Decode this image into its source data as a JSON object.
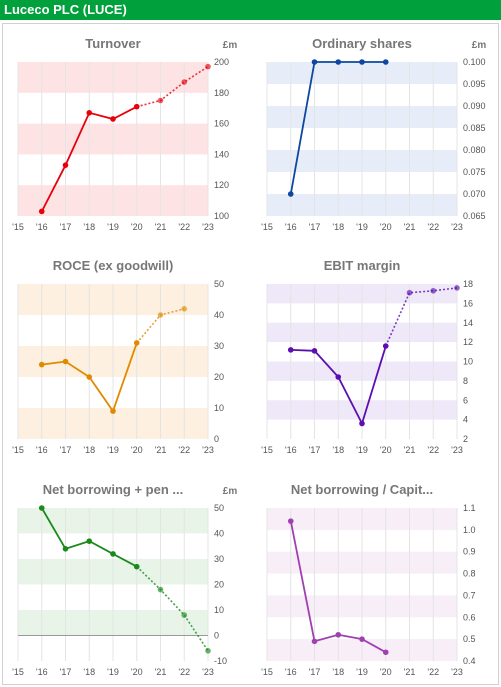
{
  "header": {
    "title": "Luceco PLC (LUCE)"
  },
  "x_tick_labels": [
    "'15",
    "'16",
    "'17",
    "'18",
    "'19",
    "'20",
    "'21",
    "'22",
    "'23"
  ],
  "chart_data": [
    {
      "type": "line",
      "title": "Turnover",
      "unit_label": "£m",
      "color": "#e8000b",
      "band_color": "#fde3e3",
      "x": [
        "'15",
        "'16",
        "'17",
        "'18",
        "'19",
        "'20",
        "'21",
        "'22",
        "'23"
      ],
      "ylim": [
        100,
        200
      ],
      "y_ticks": [
        "100",
        "120",
        "140",
        "160",
        "180",
        "200"
      ],
      "y_tick_values": [
        100,
        120,
        140,
        160,
        180,
        200
      ],
      "series": [
        {
          "style": "actual",
          "values": [
            null,
            103,
            133,
            167,
            163,
            171,
            null,
            null,
            null
          ]
        },
        {
          "style": "forecast",
          "values": [
            null,
            null,
            null,
            null,
            null,
            171,
            175,
            187,
            197
          ]
        }
      ]
    },
    {
      "type": "line",
      "title": "Ordinary shares",
      "unit_label": "£m",
      "color": "#0d47a1",
      "band_color": "#e6edf8",
      "x": [
        "'15",
        "'16",
        "'17",
        "'18",
        "'19",
        "'20",
        "'21",
        "'22",
        "'23"
      ],
      "ylim": [
        0.065,
        0.1
      ],
      "y_ticks": [
        "0.065",
        "0.070",
        "0.075",
        "0.080",
        "0.085",
        "0.090",
        "0.095",
        "0.100"
      ],
      "y_tick_values": [
        0.065,
        0.07,
        0.075,
        0.08,
        0.085,
        0.09,
        0.095,
        0.1
      ],
      "series": [
        {
          "style": "actual",
          "values": [
            null,
            0.07,
            0.1,
            0.1,
            0.1,
            0.1,
            null,
            null,
            null
          ]
        }
      ]
    },
    {
      "type": "line",
      "title": "ROCE (ex goodwill)",
      "unit_label": "",
      "color": "#e08a00",
      "band_color": "#fdf0e0",
      "x": [
        "'15",
        "'16",
        "'17",
        "'18",
        "'19",
        "'20",
        "'21",
        "'22",
        "'23"
      ],
      "ylim": [
        0,
        50
      ],
      "y_ticks": [
        "0",
        "10",
        "20",
        "30",
        "40",
        "50"
      ],
      "y_tick_values": [
        0,
        10,
        20,
        30,
        40,
        50
      ],
      "series": [
        {
          "style": "actual",
          "values": [
            null,
            24,
            25,
            20,
            9,
            31,
            null,
            null,
            null
          ]
        },
        {
          "style": "forecast",
          "values": [
            null,
            null,
            null,
            null,
            null,
            31,
            40,
            42,
            null
          ]
        }
      ]
    },
    {
      "type": "line",
      "title": "EBIT margin",
      "unit_label": "",
      "color": "#5b0fb0",
      "band_color": "#efe8f8",
      "x": [
        "'15",
        "'16",
        "'17",
        "'18",
        "'19",
        "'20",
        "'21",
        "'22",
        "'23"
      ],
      "ylim": [
        2,
        18
      ],
      "y_ticks": [
        "2",
        "4",
        "6",
        "8",
        "10",
        "12",
        "14",
        "16",
        "18"
      ],
      "y_tick_values": [
        2,
        4,
        6,
        8,
        10,
        12,
        14,
        16,
        18
      ],
      "series": [
        {
          "style": "actual",
          "values": [
            null,
            11.2,
            11.1,
            8.4,
            3.6,
            11.6,
            null,
            null,
            null
          ]
        },
        {
          "style": "forecast",
          "values": [
            null,
            null,
            null,
            null,
            null,
            11.6,
            17.1,
            17.3,
            17.6
          ]
        }
      ]
    },
    {
      "type": "line",
      "title": "Net borrowing + pen ...",
      "unit_label": "£m",
      "color": "#1a8a1a",
      "band_color": "#e8f4e8",
      "x": [
        "'15",
        "'16",
        "'17",
        "'18",
        "'19",
        "'20",
        "'21",
        "'22",
        "'23"
      ],
      "ylim": [
        -10,
        50
      ],
      "y_ticks": [
        "-10",
        "0",
        "10",
        "20",
        "30",
        "40",
        "50"
      ],
      "y_tick_values": [
        -10,
        0,
        10,
        20,
        30,
        40,
        50
      ],
      "series": [
        {
          "style": "actual",
          "values": [
            null,
            50,
            34,
            37,
            32,
            27,
            null,
            null,
            null
          ]
        },
        {
          "style": "forecast",
          "values": [
            null,
            null,
            null,
            null,
            null,
            27,
            18,
            8,
            -6
          ]
        }
      ]
    },
    {
      "type": "line",
      "title": "Net borrowing / Capit...",
      "unit_label": "",
      "color": "#a040b0",
      "band_color": "#f7eef8",
      "x": [
        "'15",
        "'16",
        "'17",
        "'18",
        "'19",
        "'20",
        "'21",
        "'22",
        "'23"
      ],
      "ylim": [
        0.4,
        1.1
      ],
      "y_ticks": [
        "0.4",
        "0.5",
        "0.6",
        "0.7",
        "0.8",
        "0.9",
        "1.0",
        "1.1"
      ],
      "y_tick_values": [
        0.4,
        0.5,
        0.6,
        0.7,
        0.8,
        0.9,
        1.0,
        1.1
      ],
      "series": [
        {
          "style": "actual",
          "values": [
            null,
            1.04,
            0.49,
            0.52,
            0.5,
            0.44,
            null,
            null,
            null
          ]
        }
      ]
    }
  ]
}
